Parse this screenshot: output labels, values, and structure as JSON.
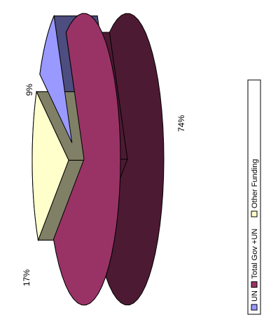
{
  "chart_data": {
    "type": "pie",
    "style": "3d-exploded-rotated",
    "series": [
      {
        "name": "",
        "points": [
          {
            "label": "UN",
            "value": 9,
            "label_text": "9%",
            "color": "#9999FF",
            "side_color": "#4D4D80"
          },
          {
            "label": "Total Gov +UN",
            "value": 74,
            "label_text": "74%",
            "color": "#993366",
            "side_color": "#4D1A33"
          },
          {
            "label": "Other  Funding",
            "value": 17,
            "label_text": "17%",
            "color": "#FFFFCC",
            "side_color": "#808066"
          }
        ]
      }
    ],
    "legend": {
      "position": "right",
      "orientation": "vertical-rotated",
      "items": [
        "UN",
        "Total Gov +UN",
        "Other  Funding"
      ]
    }
  }
}
